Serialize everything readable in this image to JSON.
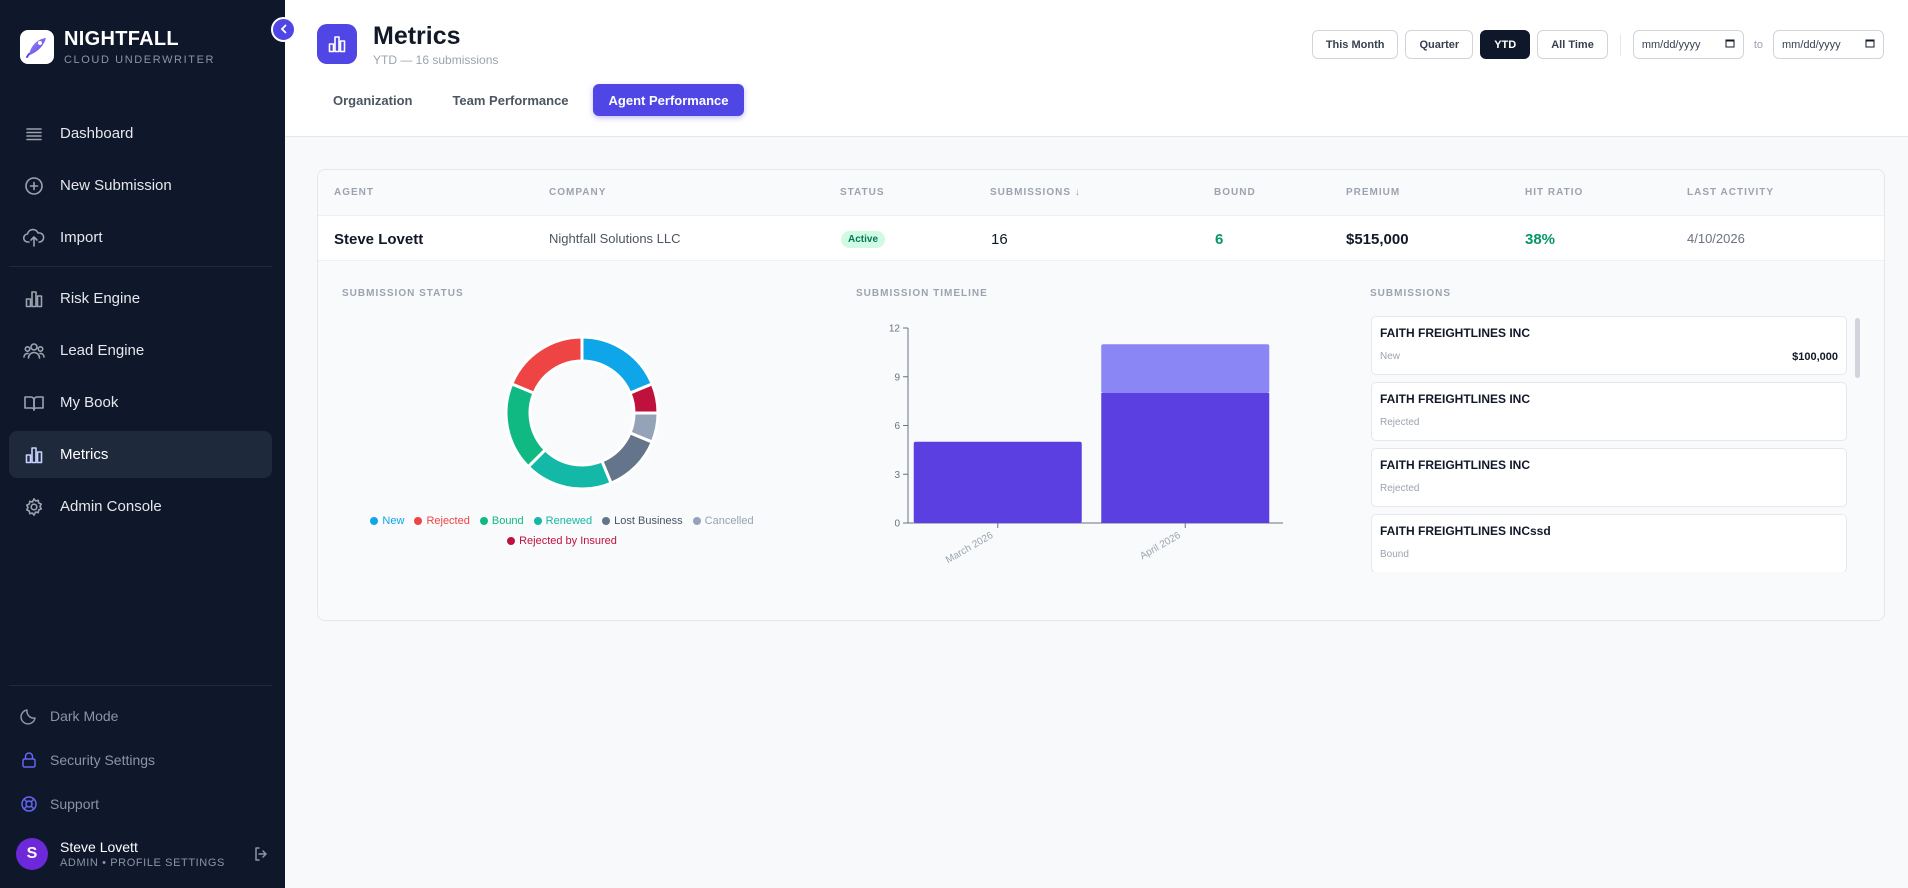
{
  "sidebar": {
    "brand_name": "NIGHTFALL",
    "brand_sub": "CLOUD UNDERWRITER",
    "items": [
      {
        "label": "Dashboard",
        "icon": "list-icon"
      },
      {
        "label": "New Submission",
        "icon": "plus-circle-icon"
      },
      {
        "label": "Import",
        "icon": "cloud-upload-icon"
      },
      {
        "label": "Risk Engine",
        "icon": "bar-chart-icon"
      },
      {
        "label": "Lead Engine",
        "icon": "users-icon"
      },
      {
        "label": "My Book",
        "icon": "book-icon"
      },
      {
        "label": "Metrics",
        "icon": "bar-chart-icon",
        "active": true
      },
      {
        "label": "Admin Console",
        "icon": "gear-icon"
      }
    ],
    "bottom": [
      {
        "label": "Dark Mode",
        "icon": "moon-icon"
      },
      {
        "label": "Security Settings",
        "icon": "lock-icon"
      },
      {
        "label": "Support",
        "icon": "lifebuoy-icon"
      }
    ],
    "user": {
      "initial": "S",
      "name": "Steve Lovett",
      "role": "ADMIN • PROFILE SETTINGS"
    }
  },
  "header": {
    "title": "Metrics",
    "subtitle": "YTD — 16 submissions",
    "tabs": [
      {
        "label": "Organization"
      },
      {
        "label": "Team Performance"
      },
      {
        "label": "Agent Performance",
        "active": true
      }
    ],
    "filters": [
      {
        "label": "This Month"
      },
      {
        "label": "Quarter"
      },
      {
        "label": "YTD",
        "active": true
      },
      {
        "label": "All Time"
      }
    ],
    "date_placeholder": "mm/dd/yyyy",
    "to_label": "to"
  },
  "table": {
    "headers": [
      "AGENT",
      "COMPANY",
      "STATUS",
      "SUBMISSIONS ↓",
      "BOUND",
      "PREMIUM",
      "HIT RATIO",
      "LAST ACTIVITY"
    ],
    "row": {
      "agent": "Steve Lovett",
      "company": "Nightfall Solutions LLC",
      "status": "Active",
      "submissions": "16",
      "bound": "6",
      "premium": "$515,000",
      "hit_ratio": "38%",
      "last_activity": "4/10/2026"
    }
  },
  "sections": {
    "status_title": "SUBMISSION STATUS",
    "timeline_title": "SUBMISSION TIMELINE",
    "submissions_title": "SUBMISSIONS"
  },
  "chart_data": [
    {
      "type": "pie",
      "variant": "donut",
      "title": "SUBMISSION STATUS",
      "slices": [
        {
          "label": "New",
          "value": 3,
          "color": "#0ea5e9"
        },
        {
          "label": "Rejected by Insured",
          "value": 1,
          "color": "#be123c"
        },
        {
          "label": "Cancelled",
          "value": 1,
          "color": "#94a3b8"
        },
        {
          "label": "Lost Business",
          "value": 2,
          "color": "#64748b"
        },
        {
          "label": "Renewed",
          "value": 3,
          "color": "#14b8a6"
        },
        {
          "label": "Bound",
          "value": 3,
          "color": "#10b981"
        },
        {
          "label": "Rejected",
          "value": 3,
          "color": "#ef4444"
        }
      ],
      "legend": [
        {
          "label": "New",
          "color": "#0ea5e9"
        },
        {
          "label": "Rejected",
          "color": "#ef4444"
        },
        {
          "label": "Bound",
          "color": "#10b981"
        },
        {
          "label": "Renewed",
          "color": "#14b8a6"
        },
        {
          "label": "Lost Business",
          "color": "#64748b"
        },
        {
          "label": "Cancelled",
          "color": "#94a3b8"
        },
        {
          "label": "Rejected by Insured",
          "color": "#be123c"
        }
      ],
      "legend_position": "bottom"
    },
    {
      "type": "bar",
      "stacked": true,
      "title": "SUBMISSION TIMELINE",
      "categories": [
        "March 2026",
        "April 2026"
      ],
      "series": [
        {
          "values": [
            5,
            8
          ],
          "color": "#5b3fe0"
        },
        {
          "values": [
            0,
            3
          ],
          "color": "#8b86f5"
        }
      ],
      "ylim": [
        0,
        12
      ],
      "yticks": [
        0,
        3,
        6,
        9,
        12
      ],
      "grid": false
    }
  ],
  "submissions": [
    {
      "name": "FAITH FREIGHTLINES INC",
      "status": "New",
      "amount": "$100,000"
    },
    {
      "name": "FAITH FREIGHTLINES INC",
      "status": "Rejected",
      "amount": ""
    },
    {
      "name": "FAITH FREIGHTLINES INC",
      "status": "Rejected",
      "amount": ""
    },
    {
      "name": "FAITH FREIGHTLINES INCssd",
      "status": "Bound",
      "amount": ""
    }
  ]
}
